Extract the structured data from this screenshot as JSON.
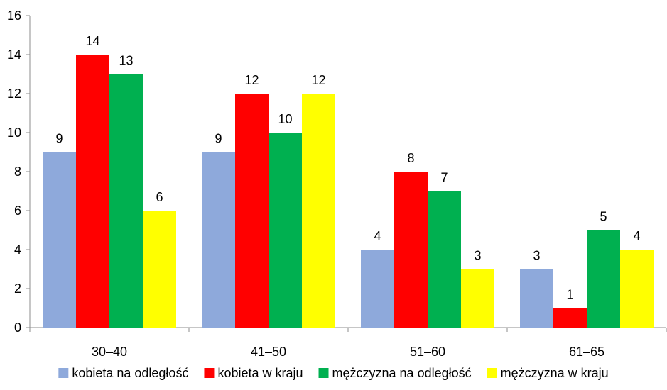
{
  "chart_data": {
    "type": "bar",
    "categories": [
      "30–40",
      "41–50",
      "51–60",
      "61–65"
    ],
    "series": [
      {
        "name": "kobieta na odległość",
        "color": "#8EA9DB",
        "values": [
          9,
          9,
          4,
          3
        ]
      },
      {
        "name": "kobieta w kraju",
        "color": "#FF0000",
        "values": [
          14,
          12,
          8,
          1
        ]
      },
      {
        "name": "mężczyzna na odległość",
        "color": "#00B050",
        "values": [
          13,
          10,
          7,
          5
        ]
      },
      {
        "name": "mężczyzna w kraju",
        "color": "#FFFF00",
        "values": [
          6,
          12,
          3,
          4
        ]
      }
    ],
    "title": "",
    "xlabel": "",
    "ylabel": "",
    "ylim": [
      0,
      16
    ],
    "yticks": [
      0,
      2,
      4,
      6,
      8,
      10,
      12,
      14,
      16
    ],
    "grid": false,
    "data_labels": true,
    "legend_position": "bottom"
  }
}
